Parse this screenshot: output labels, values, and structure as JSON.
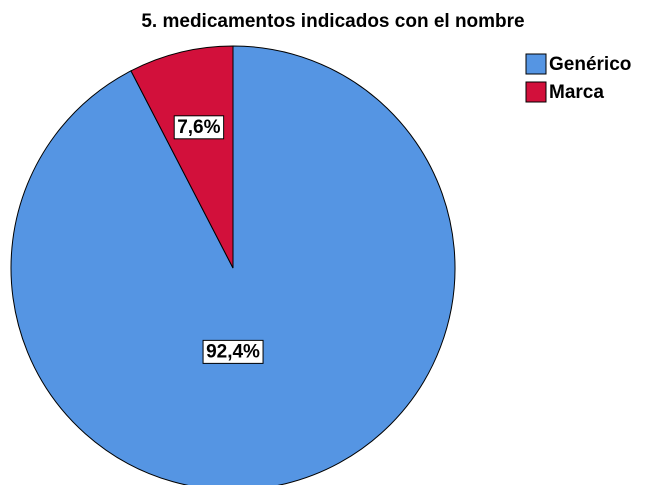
{
  "chart_data": {
    "type": "pie",
    "title": "5. medicamentos indicados con el nombre",
    "categories": [
      "Genérico",
      "Marca"
    ],
    "values": [
      92.4,
      7.6
    ],
    "value_labels": [
      "92,4%",
      "7,6%"
    ],
    "colors": [
      "#5595e3",
      "#d2103b"
    ],
    "legend": "top-right"
  }
}
